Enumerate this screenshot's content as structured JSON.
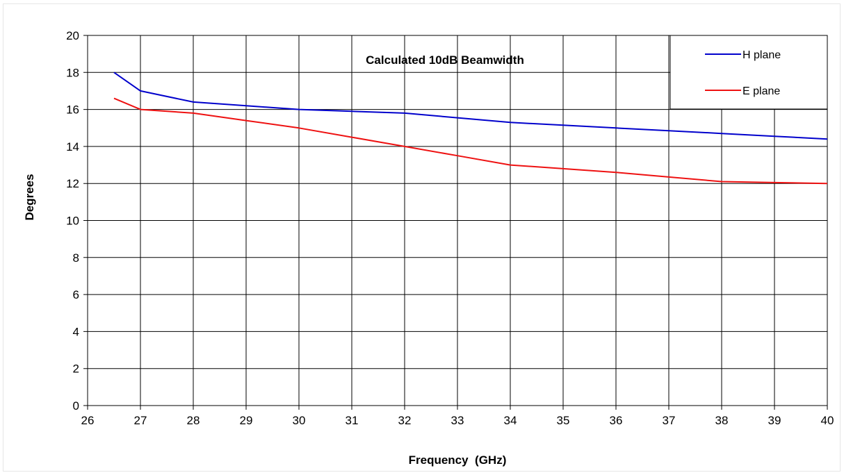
{
  "chart_data": {
    "type": "line",
    "title": "Calculated 10dB Beamwidth",
    "xlabel": "Frequency  (GHz)",
    "ylabel": "Degrees",
    "xlim": [
      26,
      40
    ],
    "ylim": [
      0,
      20
    ],
    "x_ticks": [
      "26",
      "27",
      "28",
      "29",
      "30",
      "31",
      "32",
      "33",
      "34",
      "35",
      "36",
      "37",
      "38",
      "39",
      "40"
    ],
    "y_ticks": [
      "0",
      "2",
      "4",
      "6",
      "8",
      "10",
      "12",
      "14",
      "16",
      "18",
      "20"
    ],
    "grid": true,
    "legend_position": "top-right",
    "series": [
      {
        "name": "H plane",
        "color": "#0000cc",
        "x": [
          26.5,
          27,
          28,
          29,
          30,
          31,
          32,
          33,
          34,
          35,
          36,
          37,
          38,
          39,
          40
        ],
        "y": [
          18.0,
          17.0,
          16.4,
          16.2,
          16.0,
          15.9,
          15.8,
          15.55,
          15.3,
          15.15,
          15.0,
          14.85,
          14.7,
          14.55,
          14.4
        ]
      },
      {
        "name": "E plane",
        "color": "#ee1111",
        "x": [
          26.5,
          27,
          28,
          29,
          30,
          31,
          32,
          33,
          34,
          35,
          36,
          37,
          38,
          39,
          40
        ],
        "y": [
          16.6,
          16.0,
          15.8,
          15.4,
          15.0,
          14.5,
          14.0,
          13.5,
          13.0,
          12.8,
          12.6,
          12.35,
          12.1,
          12.05,
          12.0
        ]
      }
    ]
  }
}
